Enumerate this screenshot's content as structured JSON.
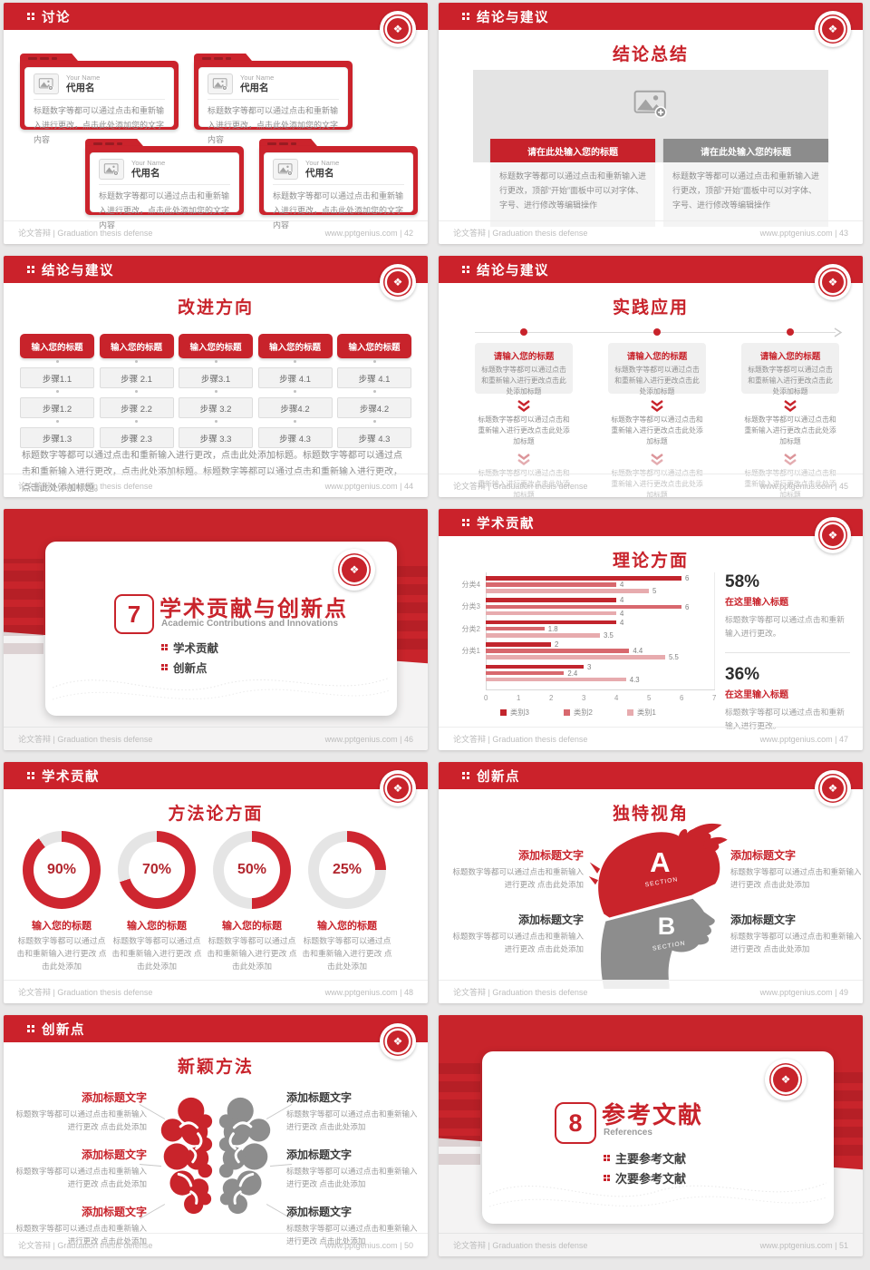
{
  "icons": {
    "seal": "❖"
  },
  "theme": {
    "red": "#c8232b",
    "band_red": "#cb222b",
    "bar_dark": "#c2252d",
    "bar_mid": "#d8686e",
    "bar_light": "#e7abae",
    "gray_panel": "#f2f2f2"
  },
  "common": {
    "footer_left": "论文答辩 | Graduation thesis defense",
    "site": "www.pptgenius.com"
  },
  "chart_data": {
    "type": "bar",
    "orientation": "horizontal",
    "title": "理论方面",
    "categories": [
      "分类4",
      "分类3",
      "分类2",
      "分类1",
      ""
    ],
    "series": [
      {
        "name": "类别3",
        "color": "#c2252d",
        "values": [
          6,
          4,
          4,
          2,
          3
        ]
      },
      {
        "name": "类别2",
        "color": "#d8686e",
        "values": [
          4,
          6,
          1.8,
          4.4,
          2.4
        ]
      },
      {
        "name": "类别1",
        "color": "#e7abae",
        "values": [
          5,
          4,
          3.5,
          5.5,
          4.3
        ]
      }
    ],
    "xlim": [
      0,
      7
    ],
    "xticks": [
      "0",
      "1",
      "2",
      "3",
      "4",
      "5",
      "6",
      "7"
    ],
    "legend_position": "bottom",
    "value_labels": true,
    "grid": false
  },
  "slides": {
    "s42": {
      "header": "讨论",
      "footer_right": "www.pptgenius.com | 42",
      "folders": [
        {
          "name_label": "Your Name",
          "name": "代用名",
          "body": "标题数字等都可以通过点击和重新输入进行更改，点击此处添加您的文字内容"
        },
        {
          "name_label": "Your Name",
          "name": "代用名",
          "body": "标题数字等都可以通过点击和重新输入进行更改，点击此处添加您的文字内容"
        },
        {
          "name_label": "Your Name",
          "name": "代用名",
          "body": "标题数字等都可以通过点击和重新输入进行更改，点击此处添加您的文字内容"
        },
        {
          "name_label": "Your Name",
          "name": "代用名",
          "body": "标题数字等都可以通过点击和重新输入进行更改，点击此处添加您的文字内容"
        }
      ]
    },
    "s43": {
      "header": "结论与建议",
      "footer_right": "www.pptgenius.com | 43",
      "heading": "结论总结",
      "panels": [
        {
          "title": "请在此处输入您的标题",
          "bar_color": "#c7222b",
          "body": "标题数字等都可以通过点击和重新输入进行更改，顶部“开始”面板中可以对字体、字号、进行修改等编辑操作"
        },
        {
          "title": "请在此处输入您的标题",
          "bar_color": "#8c8c8c",
          "body": "标题数字等都可以通过点击和重新输入进行更改，顶部“开始”面板中可以对字体、字号、进行修改等编辑操作"
        }
      ]
    },
    "s44": {
      "header": "结论与建议",
      "footer_right": "www.pptgenius.com | 44",
      "heading": "改进方向",
      "columns": [
        {
          "title": "输入您的标题",
          "steps": [
            "步骤1.1",
            "步骤1.2",
            "步骤1.3"
          ]
        },
        {
          "title": "输入您的标题",
          "steps": [
            "步骤 2.1",
            "步骤 2.2",
            "步骤 2.3"
          ]
        },
        {
          "title": "输入您的标题",
          "steps": [
            "步骤3.1",
            "步骤 3.2",
            "步骤 3.3"
          ]
        },
        {
          "title": "输入您的标题",
          "steps": [
            "步骤 4.1",
            "步骤4.2",
            "步骤 4.3"
          ]
        },
        {
          "title": "输入您的标题",
          "steps": [
            "步骤 4.1",
            "步骤4.2",
            "步骤 4.3"
          ]
        }
      ],
      "paragraph": "标题数字等都可以通过点击和重新输入进行更改，点击此处添加标题。标题数字等都可以通过点击和重新输入进行更改，点击此处添加标题。标题数字等都可以通过点击和重新输入进行更改，点击此处添加标题。"
    },
    "s45": {
      "header": "结论与建议",
      "footer_right": "www.pptgenius.com | 45",
      "heading": "实践应用",
      "columns": [
        {
          "title": "请输入您的标题",
          "box_text": "标题数字等都可以通过点击和重新输入进行更改点击此处添加标题",
          "text2": "标题数字等都可以通过点击和重新输入进行更改点击此处添加标题",
          "text3": "标题数字等都可以通过点击和重新输入进行更改点击此处添加标题"
        },
        {
          "title": "请输入您的标题",
          "box_text": "标题数字等都可以通过点击和重新输入进行更改点击此处添加标题",
          "text2": "标题数字等都可以通过点击和重新输入进行更改点击此处添加标题",
          "text3": "标题数字等都可以通过点击和重新输入进行更改点击此处添加标题"
        },
        {
          "title": "请输入您的标题",
          "box_text": "标题数字等都可以通过点击和重新输入进行更改点击此处添加标题",
          "text2": "标题数字等都可以通过点击和重新输入进行更改点击此处添加标题",
          "text3": "标题数字等都可以通过点击和重新输入进行更改点击此处添加标题"
        }
      ]
    },
    "s46": {
      "footer_right": "www.pptgenius.com | 46",
      "number": "7",
      "title": "学术贡献与创新点",
      "subtitle": "Academic Contributions and Innovations",
      "bullets": [
        "学术贡献",
        "创新点"
      ]
    },
    "s47": {
      "header": "学术贡献",
      "footer_right": "www.pptgenius.com | 47",
      "heading": "理论方面",
      "stats": [
        {
          "value": "58%",
          "title": "在这里输入标题",
          "body": "标题数字等都可以通过点击和重新输入进行更改。"
        },
        {
          "value": "36%",
          "title": "在这里输入标题",
          "body": "标题数字等都可以通过点击和重新输入进行更改。"
        }
      ]
    },
    "s48": {
      "header": "学术贡献",
      "footer_right": "www.pptgenius.com | 48",
      "heading": "方法论方面",
      "donuts": [
        {
          "pct": 90,
          "label": "90%",
          "title": "输入您的标题",
          "body": "标题数字等都可以通过点击和重新输入进行更改 点击此处添加"
        },
        {
          "pct": 70,
          "label": "70%",
          "title": "输入您的标题",
          "body": "标题数字等都可以通过点击和重新输入进行更改 点击此处添加"
        },
        {
          "pct": 50,
          "label": "50%",
          "title": "输入您的标题",
          "body": "标题数字等都可以通过点击和重新输入进行更改 点击此处添加"
        },
        {
          "pct": 25,
          "label": "25%",
          "title": "输入您的标题",
          "body": "标题数字等都可以通过点击和重新输入进行更改 点击此处添加"
        }
      ]
    },
    "s49": {
      "header": "创新点",
      "footer_right": "www.pptgenius.com | 49",
      "heading": "独特视角",
      "section_a": "A",
      "section_a_sub": "SECTION",
      "section_b": "B",
      "section_b_sub": "SECTION",
      "left": [
        {
          "title": "添加标题文字",
          "red": true,
          "body": "标题数字等都可以通过点击和重新输入进行更改 点击此处添加"
        },
        {
          "title": "添加标题文字",
          "red": false,
          "body": "标题数字等都可以通过点击和重新输入进行更改 点击此处添加"
        }
      ],
      "right": [
        {
          "title": "添加标题文字",
          "red": true,
          "body": "标题数字等都可以通过点击和重新输入进行更改 点击此处添加"
        },
        {
          "title": "添加标题文字",
          "red": false,
          "body": "标题数字等都可以通过点击和重新输入进行更改 点击此处添加"
        }
      ]
    },
    "s50": {
      "header": "创新点",
      "footer_right": "www.pptgenius.com | 50",
      "heading": "新颖方法",
      "left": [
        {
          "title": "添加标题文字",
          "red": true,
          "body": "标题数字等都可以通过点击和重新输入进行更改 点击此处添加"
        },
        {
          "title": "添加标题文字",
          "red": true,
          "body": "标题数字等都可以通过点击和重新输入进行更改 点击此处添加"
        },
        {
          "title": "添加标题文字",
          "red": true,
          "body": "标题数字等都可以通过点击和重新输入进行更改 点击此处添加"
        }
      ],
      "right": [
        {
          "title": "添加标题文字",
          "red": false,
          "body": "标题数字等都可以通过点击和重新输入进行更改 点击此处添加"
        },
        {
          "title": "添加标题文字",
          "red": false,
          "body": "标题数字等都可以通过点击和重新输入进行更改 点击此处添加"
        },
        {
          "title": "添加标题文字",
          "red": false,
          "body": "标题数字等都可以通过点击和重新输入进行更改 点击此处添加"
        }
      ]
    },
    "s51": {
      "footer_right": "www.pptgenius.com | 51",
      "number": "8",
      "title": "参考文献",
      "subtitle": "References",
      "bullets": [
        "主要参考文献",
        "次要参考文献"
      ]
    }
  }
}
